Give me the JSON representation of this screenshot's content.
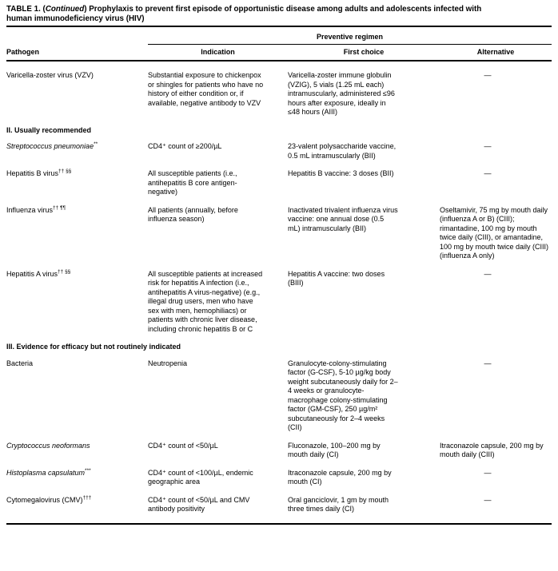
{
  "colors": {
    "text": "#000000",
    "background": "#ffffff"
  },
  "title": {
    "prefix": "TABLE 1. (",
    "continued": "Continued",
    "suffix_line1": ") Prophylaxis to prevent first episode of opportunistic disease among adults and adolescents infected with",
    "line2": "human immunodeficiency virus (HIV)"
  },
  "table": {
    "group_header": "Preventive regimen",
    "columns": [
      "Pathogen",
      "Indication",
      "First choice",
      "Alternative"
    ]
  },
  "sections": [
    {
      "rows": [
        {
          "pathogen": "Varicella-zoster virus (VZV)",
          "pathogen_sup": "",
          "indication": "Substantial exposure to chickenpox or shingles for patients who have no history of either condition or, if available, negative antibody to VZV",
          "first_choice": "Varicella-zoster immune globulin (VZIG), 5 vials (1.25 mL each) intramuscularly, administered ≤96 hours after exposure, ideally in ≤48 hours (AIII)",
          "alternative": "—"
        }
      ]
    },
    {
      "heading": "II. Usually recommended",
      "rows": [
        {
          "pathogen": "Streptococcus pneumoniae",
          "pathogen_sup": "**",
          "indication": "CD4⁺ count of ≥200/µL",
          "first_choice": "23-valent polysaccharide vaccine, 0.5 mL intramuscularly (BII)",
          "alternative": "—"
        },
        {
          "pathogen": "Hepatitis B virus",
          "pathogen_sup": "†† §§",
          "indication": "All susceptible patients (i.e., antihepatitis B core antigen-negative)",
          "first_choice": "Hepatitis B vaccine: 3 doses (BII)",
          "alternative": "—"
        },
        {
          "pathogen": "Influenza virus",
          "pathogen_sup": "†† ¶¶",
          "indication": "All patients (annually, before influenza season)",
          "first_choice": "Inactivated trivalent influenza virus vaccine: one annual dose (0.5 mL) intramuscularly (BII)",
          "alternative": "Oseltamivir, 75 mg by mouth daily (influenza A or B) (CIII); rimantadine, 100 mg by mouth twice daily (CIII), or amantadine, 100 mg by mouth twice daily (CIII) (influenza A only)"
        },
        {
          "pathogen": "Hepatitis A virus",
          "pathogen_sup": "†† §§",
          "indication": "All susceptible patients at increased risk for hepatitis A infection (i.e., antihepatitis A virus-negative) (e.g., illegal drug users, men who have sex with men, hemophiliacs) or patients with chronic liver disease, including chronic hepatitis B or C",
          "first_choice": "Hepatitis A vaccine: two doses (BIII)",
          "alternative": "—"
        }
      ]
    },
    {
      "heading": "III. Evidence for efficacy but not routinely indicated",
      "rows": [
        {
          "pathogen": "Bacteria",
          "pathogen_sup": "",
          "indication": "Neutropenia",
          "first_choice": "Granulocyte-colony-stimulating factor (G-CSF), 5-10 µg/kg body weight subcutaneously daily for 2–4 weeks or granulocyte-macrophage colony-stimulating factor (GM-CSF), 250 µg/m² subcutaneously for 2–4 weeks (CII)",
          "alternative": "—"
        },
        {
          "pathogen": "Cryptococcus neoformans",
          "pathogen_sup": "",
          "indication": "CD4⁺ count of <50/µL",
          "first_choice": "Fluconazole, 100–200 mg by mouth daily (CI)",
          "alternative": "Itraconazole capsule, 200 mg by mouth daily (CIII)"
        },
        {
          "pathogen": "Histoplasma capsulatum",
          "pathogen_sup": "***",
          "indication": "CD4⁺ count of <100/µL, endemic geographic area",
          "first_choice": "Itraconazole capsule, 200 mg by mouth (CI)",
          "alternative": "—"
        },
        {
          "pathogen": "Cytomegalovirus (CMV)",
          "pathogen_sup": "†††",
          "indication": "CD4⁺ count of <50/µL and CMV antibody positivity",
          "first_choice": "Oral ganciclovir, 1 gm by mouth three times daily (CI)",
          "alternative": "—"
        }
      ]
    }
  ]
}
